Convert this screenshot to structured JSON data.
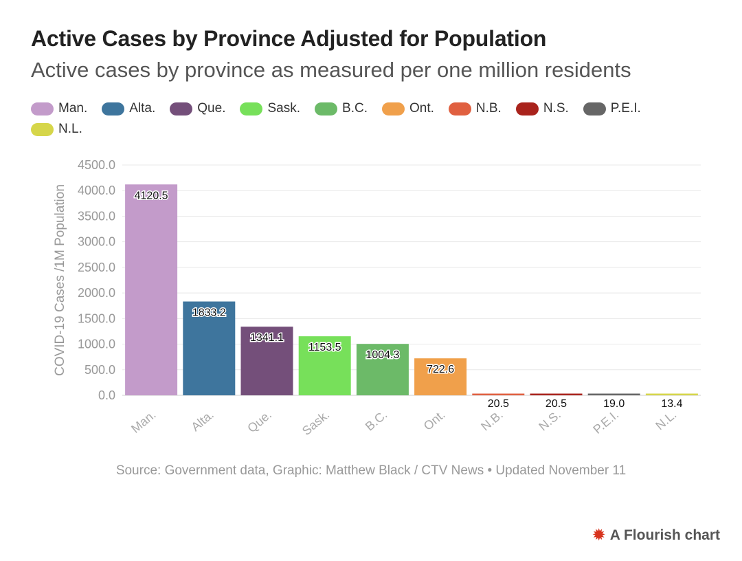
{
  "title": "Active Cases by Province Adjusted for Population",
  "subtitle": "Active cases by province as measured per one million residents",
  "legend": [
    {
      "label": "Man.",
      "color": "#c39bca"
    },
    {
      "label": "Alta.",
      "color": "#3e759d"
    },
    {
      "label": "Que.",
      "color": "#744f7a"
    },
    {
      "label": "Sask.",
      "color": "#77e05a"
    },
    {
      "label": "B.C.",
      "color": "#6cba68"
    },
    {
      "label": "Ont.",
      "color": "#f0a04b"
    },
    {
      "label": "N.B.",
      "color": "#e06040"
    },
    {
      "label": "N.S.",
      "color": "#a9231c"
    },
    {
      "label": "P.E.I.",
      "color": "#666666"
    },
    {
      "label": "N.L.",
      "color": "#d6d64a"
    }
  ],
  "chart_data": {
    "type": "bar",
    "categories": [
      "Man.",
      "Alta.",
      "Que.",
      "Sask.",
      "B.C.",
      "Ont.",
      "N.B.",
      "N.S.",
      "P.E.I.",
      "N.L."
    ],
    "values": [
      4120.5,
      1833.2,
      1341.1,
      1153.5,
      1004.3,
      722.6,
      20.5,
      20.5,
      19.0,
      13.4
    ],
    "value_labels": [
      "4120.5",
      "1833.2",
      "1341.1",
      "1153.5",
      "1004.3",
      "722.6",
      "20.5",
      "20.5",
      "19.0",
      "13.4"
    ],
    "ylabel": "COVID-19 Cases /1M Population",
    "xlabel": "",
    "ylim": [
      0,
      4500
    ],
    "yticks": [
      "0.0",
      "500.0",
      "1000.0",
      "1500.0",
      "2000.0",
      "2500.0",
      "3000.0",
      "3500.0",
      "4000.0",
      "4500.0"
    ],
    "grid": true
  },
  "source": "Source: Government data, Graphic: Matthew Black / CTV News • Updated November 11",
  "brand": {
    "icon": "flourish-burst-icon",
    "label": "A Flourish chart"
  }
}
